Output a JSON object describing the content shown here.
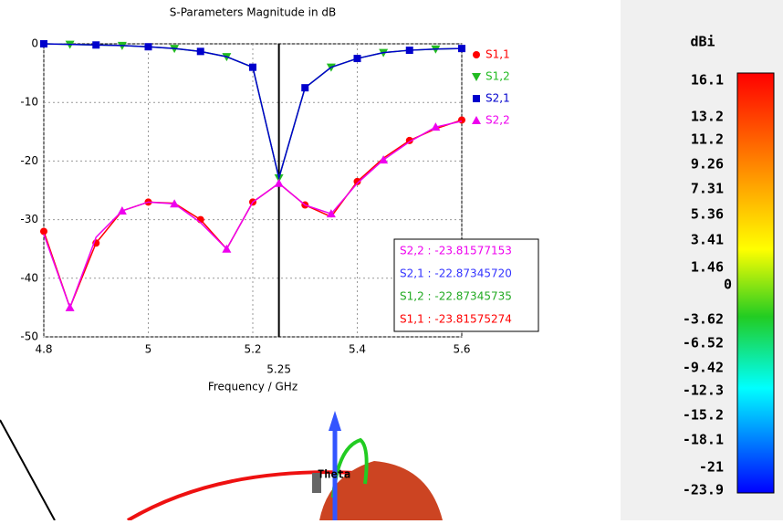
{
  "chart_data": {
    "type": "line",
    "title": "S-Parameters Magnitude in dB",
    "x_label": "Frequency / GHz",
    "x": [
      4.8,
      4.85,
      4.9,
      4.95,
      5.0,
      5.05,
      5.1,
      5.15,
      5.2,
      5.25,
      5.3,
      5.35,
      5.4,
      5.45,
      5.5,
      5.55,
      5.6
    ],
    "series": [
      {
        "name": "S1,1",
        "color": "#ff0000",
        "marker": "circle",
        "values": [
          -32,
          -45,
          -34,
          -28.5,
          -27,
          -27.2,
          -30,
          -35,
          -27,
          -23.8,
          -27.5,
          -29.5,
          -23.5,
          -19.5,
          -16.5,
          -14.5,
          -13
        ]
      },
      {
        "name": "S1,2",
        "color": "#22bb22",
        "marker": "triangle-down",
        "values": [
          0,
          -0.1,
          -0.2,
          -0.3,
          -0.5,
          -0.8,
          -1.3,
          -2.2,
          -4,
          -22.9,
          -7.5,
          -4,
          -2.5,
          -1.5,
          -1.1,
          -0.9,
          -0.8
        ]
      },
      {
        "name": "S2,1",
        "color": "#0000cc",
        "marker": "square",
        "values": [
          0,
          -0.1,
          -0.2,
          -0.3,
          -0.5,
          -0.8,
          -1.3,
          -2.2,
          -4,
          -22.9,
          -7.5,
          -4,
          -2.5,
          -1.5,
          -1.1,
          -0.9,
          -0.8
        ]
      },
      {
        "name": "S2,2",
        "color": "#ee00ee",
        "marker": "triangle-up",
        "values": [
          -32.5,
          -45,
          -33,
          -28.5,
          -27,
          -27.3,
          -30.5,
          -35,
          -27,
          -23.8,
          -27.5,
          -29,
          -23.8,
          -19.8,
          -16.7,
          -14.2,
          -13.2
        ]
      }
    ],
    "xlim": [
      4.8,
      5.6
    ],
    "xticks": [
      4.8,
      5,
      5.2,
      5.4,
      5.6
    ],
    "ylim": [
      -50,
      0
    ],
    "yticks": [
      0,
      -10,
      -20,
      -30,
      -40,
      -50
    ],
    "grid": true,
    "legend": "right",
    "cursor_x": 5.25,
    "annotations": [
      {
        "text": "S2,2 : -23.81577153",
        "color": "#ee00ee"
      },
      {
        "text": "S2,1 : -22.87345720",
        "color": "#3333ff"
      },
      {
        "text": "S1,2 : -22.87345735",
        "color": "#22aa22"
      },
      {
        "text": "S1,1 : -23.81575274",
        "color": "#ff0000"
      }
    ]
  },
  "colorbar": {
    "title": "dBi",
    "labels": [
      "16.1",
      "13.2",
      "11.2",
      "9.26",
      "7.31",
      "5.36",
      "3.41",
      "1.46",
      "0",
      "-3.62",
      "-6.52",
      "-9.42",
      "-12.3",
      "-15.2",
      "-18.1",
      "-21",
      "-23.9"
    ]
  },
  "view3d": {
    "axis_label": "Theta"
  }
}
